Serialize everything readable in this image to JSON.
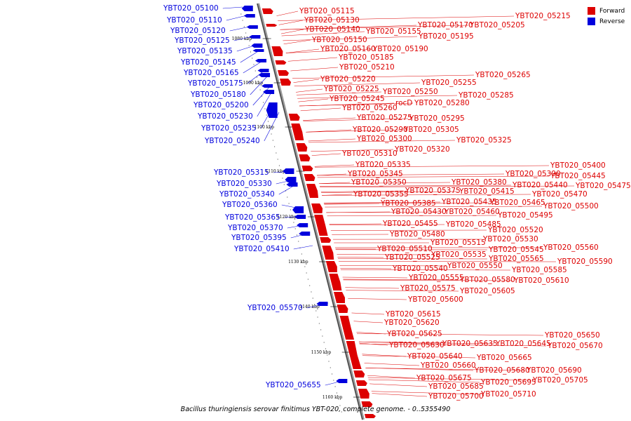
{
  "legend": {
    "forward_label": "Forward",
    "reverse_label": "Reverse",
    "forward_color": "#dd0000",
    "reverse_color": "#0000dd"
  },
  "caption": "Bacillus thuringiensis serovar finitimus YBT-020, complete genome. - 0..5355490",
  "ticks": [
    "1080 kbp",
    "1090 kbp",
    "1100 kbp",
    "1110 kbp",
    "1120 kbp",
    "1130 kbp",
    "1140 kbp",
    "1150 kbp",
    "1160 kbp"
  ],
  "reverse_genes": [
    "YBT020_05100",
    "YBT020_05110",
    "YBT020_05120",
    "YBT020_05125",
    "YBT020_05135",
    "YBT020_05145",
    "YBT020_05165",
    "YBT020_05175",
    "YBT020_05180",
    "YBT020_05200",
    "YBT020_05230",
    "YBT020_05235",
    "YBT020_05240",
    "YBT020_05315",
    "YBT020_05330",
    "YBT020_05340",
    "YBT020_05360",
    "YBT020_05365",
    "YBT020_05370",
    "YBT020_05395",
    "YBT020_05410",
    "YBT020_05570",
    "YBT020_05655"
  ],
  "forward_genes": [
    "YBT020_05115",
    "YBT020_05130",
    "YBT020_05140",
    "YBT020_05150",
    "YBT020_05155",
    "YBT020_05170",
    "YBT020_05205",
    "YBT020_05215",
    "YBT020_05195",
    "YBT020_05160",
    "YBT020_05190",
    "YBT020_05185",
    "YBT020_05210",
    "YBT020_05265",
    "YBT020_05220",
    "YBT020_05255",
    "YBT020_05225",
    "YBT020_05250",
    "YBT020_05285",
    "YBT020_05245",
    "rocD",
    "YBT020_05280",
    "YBT020_05260",
    "YBT020_05275",
    "YBT020_05295",
    "YBT020_05290",
    "YBT020_05305",
    "YBT020_05325",
    "YBT020_05300",
    "YBT020_05320",
    "YBT020_05310",
    "YBT020_05335",
    "YBT020_05400",
    "YBT020_05390",
    "YBT020_05445",
    "YBT020_05345",
    "YBT020_05380",
    "YBT020_05440",
    "YBT020_05475",
    "YBT020_05350",
    "YBT020_05375",
    "YBT020_05415",
    "YBT020_05470",
    "YBT020_05355",
    "YBT020_05435",
    "YBT020_05465",
    "YBT020_05385",
    "YBT020_05500",
    "YBT020_05430",
    "YBT020_05460",
    "YBT020_05495",
    "YBT020_05485",
    "YBT020_05455",
    "YBT020_05520",
    "YBT020_05480",
    "YBT020_05530",
    "YBT020_05515",
    "YBT020_05545",
    "YBT020_05560",
    "YBT020_05510",
    "YBT020_05535",
    "YBT020_05565",
    "YBT020_05590",
    "YBT020_05525",
    "YBT020_05550",
    "YBT020_05540",
    "YBT020_05585",
    "YBT020_05580",
    "YBT020_05555",
    "YBT020_05610",
    "YBT020_05575",
    "YBT020_05605",
    "YBT020_05600",
    "YBT020_05615",
    "YBT020_05620",
    "YBT020_05625",
    "YBT020_05650",
    "YBT020_05635",
    "YBT020_05645",
    "YBT020_05630",
    "YBT020_05670",
    "YBT020_05665",
    "YBT020_05640",
    "YBT020_05660",
    "YBT020_05680",
    "YBT020_05690",
    "YBT020_05675",
    "YBT020_05705",
    "YBT020_05695",
    "YBT020_05685",
    "YBT020_05710",
    "YBT020_05700"
  ]
}
